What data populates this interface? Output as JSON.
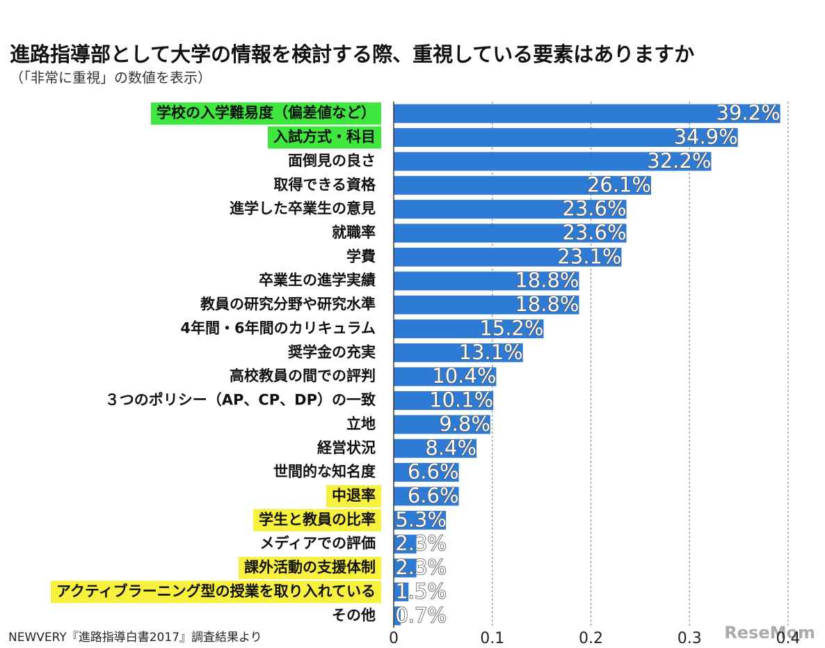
{
  "chart_data": {
    "type": "bar",
    "orientation": "horizontal",
    "title": "進路指導部として大学の情報を検討する際、重視している要素はありますか",
    "subtitle": "（「非常に重視」の数値を表示）",
    "categories": [
      "学校の入学難易度（偏差値など）",
      "入試方式・科目",
      "面倒見の良さ",
      "取得できる資格",
      "進学した卒業生の意見",
      "就職率",
      "学費",
      "卒業生の進学実績",
      "教員の研究分野や研究水準",
      "4年間・6年間のカリキュラム",
      "奨学金の充実",
      "高校教員の間での評判",
      "３つのポリシー（AP、CP、DP）の一致",
      "立地",
      "経営状況",
      "世間的な知名度",
      "中退率",
      "学生と教員の比率",
      "メディアでの評価",
      "課外活動の支援体制",
      "アクティブラーニング型の授業を取り入れている",
      "その他"
    ],
    "values": [
      0.392,
      0.349,
      0.322,
      0.261,
      0.236,
      0.236,
      0.231,
      0.188,
      0.188,
      0.152,
      0.131,
      0.104,
      0.101,
      0.098,
      0.084,
      0.066,
      0.066,
      0.053,
      0.023,
      0.023,
      0.015,
      0.007
    ],
    "value_labels": [
      "39.2%",
      "34.9%",
      "32.2%",
      "26.1%",
      "23.6%",
      "23.6%",
      "23.1%",
      "18.8%",
      "18.8%",
      "15.2%",
      "13.1%",
      "10.4%",
      "10.1%",
      "9.8%",
      "8.4%",
      "6.6%",
      "6.6%",
      "5.3%",
      "2.3%",
      "2.3%",
      "1.5%",
      "0.7%"
    ],
    "category_highlights": [
      "#3ee63e",
      "#3ee63e",
      null,
      null,
      null,
      null,
      null,
      null,
      null,
      null,
      null,
      null,
      null,
      null,
      null,
      null,
      "#f7f03c",
      "#f7f03c",
      null,
      "#f7f03c",
      "#f7f03c",
      null
    ],
    "color": "#2e7bd6",
    "xlim": [
      0,
      0.4
    ],
    "xticks": [
      0,
      0.1,
      0.2,
      0.3,
      0.4
    ],
    "grid": true,
    "source": "NEWVERY『進路指導白書2017』調査結果より",
    "watermark": "ReseMom"
  }
}
